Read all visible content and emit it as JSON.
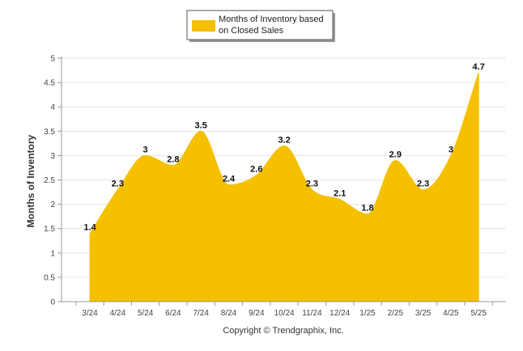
{
  "chart_data": {
    "type": "area",
    "categories": [
      "3/24",
      "4/24",
      "5/24",
      "6/24",
      "7/24",
      "8/24",
      "9/24",
      "10/24",
      "11/24",
      "12/24",
      "1/25",
      "2/25",
      "3/25",
      "4/25",
      "5/25"
    ],
    "series": [
      {
        "name": "Months of Inventory based on Closed Sales",
        "values": [
          1.4,
          2.3,
          3,
          2.8,
          3.5,
          2.4,
          2.6,
          3.2,
          2.3,
          2.1,
          1.8,
          2.9,
          2.3,
          3,
          4.7
        ],
        "data_labels": [
          "1.4",
          "2.3",
          "3",
          "2.8",
          "3.5",
          "2.4",
          "2.6",
          "3.2",
          "2.3",
          "2.1",
          "1.8",
          "2.9",
          "2.3",
          "3",
          "4.7"
        ]
      }
    ],
    "ylabel": "Months of Inventory",
    "ylim": [
      0,
      5
    ],
    "yticks": [
      "0",
      "0.5",
      "1",
      "1.5",
      "2",
      "2.5",
      "3",
      "3.5",
      "4",
      "4.5",
      "5"
    ],
    "grid": true,
    "legend": "top-center",
    "legend_lines": [
      "Months of Inventory based",
      "on Closed Sales"
    ],
    "color": "#F5C000"
  },
  "footer": {
    "copyright": "Copyright © Trendgraphix, Inc."
  }
}
